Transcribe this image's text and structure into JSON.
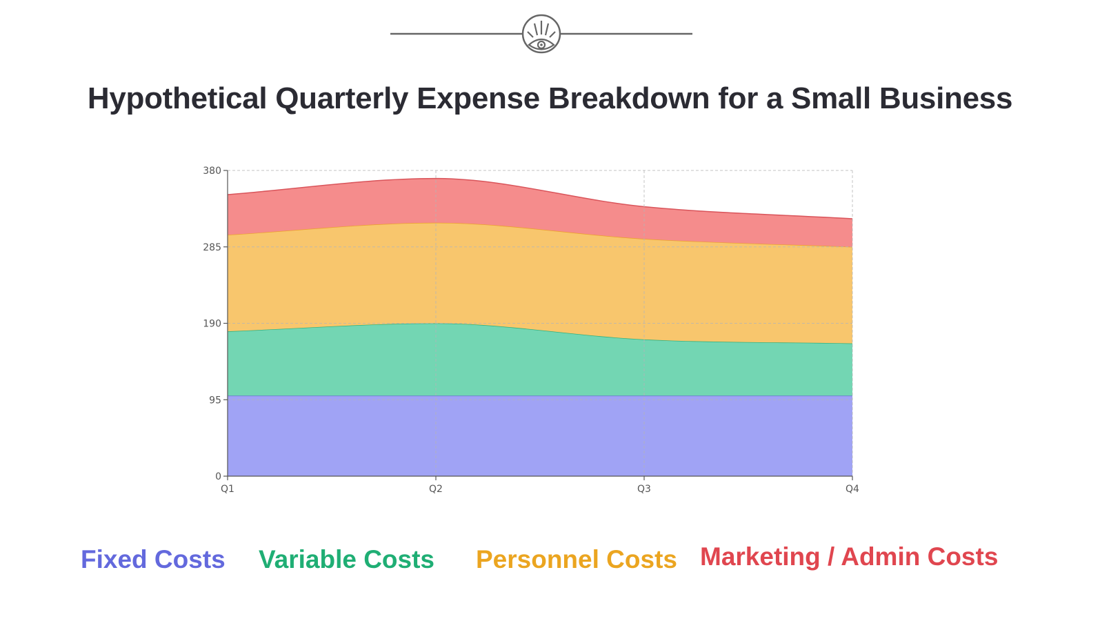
{
  "chart_data": {
    "type": "area",
    "stacked": true,
    "title": "Hypothetical Quarterly Expense Breakdown for a Small Business",
    "xlabel": "",
    "ylabel": "",
    "categories": [
      "Q1",
      "Q2",
      "Q3",
      "Q4"
    ],
    "ylim": [
      0,
      380
    ],
    "yticks": [
      0,
      95,
      190,
      285,
      380
    ],
    "grid": true,
    "legend_position": "bottom",
    "series": [
      {
        "name": "Fixed Costs",
        "values": [
          100,
          100,
          100,
          100
        ],
        "fill": "#a0a3f5",
        "stroke": "#6a6fd6",
        "label_color": "#6369dd"
      },
      {
        "name": "Variable Costs",
        "values": [
          80,
          90,
          70,
          65
        ],
        "fill": "#73d6b3",
        "stroke": "#2fb07e",
        "label_color": "#1fae74"
      },
      {
        "name": "Personnel Costs",
        "values": [
          120,
          125,
          125,
          120
        ],
        "fill": "#f8c66d",
        "stroke": "#eba12c",
        "label_color": "#eba520"
      },
      {
        "name": "Marketing / Admin Costs",
        "values": [
          50,
          55,
          40,
          35
        ],
        "fill": "#f58c8c",
        "stroke": "#d9545a",
        "label_color": "#e0464f"
      }
    ]
  }
}
